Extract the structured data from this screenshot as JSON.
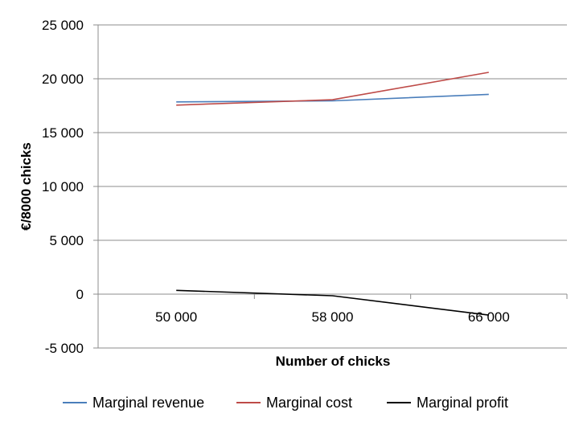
{
  "chart_data": {
    "type": "line",
    "title": "",
    "xlabel": "Number of chicks",
    "ylabel": "€/8000 chicks",
    "categories": [
      "50 000",
      "58 000",
      "66 000"
    ],
    "ylim": [
      -5000,
      25000
    ],
    "yticks": [
      -5000,
      0,
      5000,
      10000,
      15000,
      20000,
      25000
    ],
    "ytick_labels": [
      "-5 000",
      "0",
      "5 000",
      "10 000",
      "15 000",
      "20 000",
      "25 000"
    ],
    "grid": "horizontal",
    "legend_position": "bottom",
    "series": [
      {
        "name": "Marginal revenue",
        "color": "#4a7ebb",
        "values": [
          17850,
          17950,
          18550
        ]
      },
      {
        "name": "Marginal cost",
        "color": "#be4b48",
        "values": [
          17550,
          18050,
          20600
        ]
      },
      {
        "name": "Marginal profit",
        "color": "#000000",
        "values": [
          350,
          -150,
          -1950
        ]
      }
    ]
  }
}
